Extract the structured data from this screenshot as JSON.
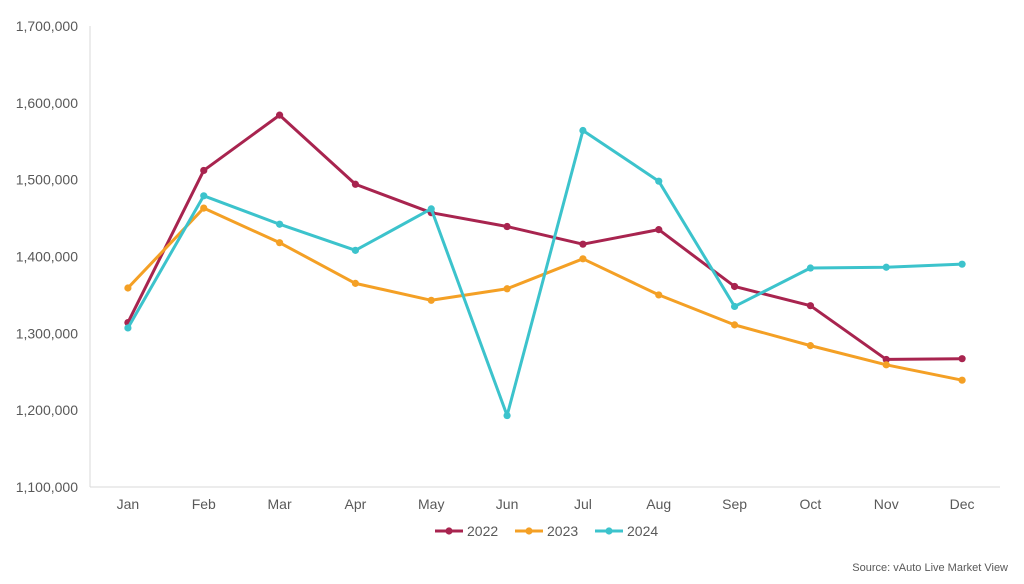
{
  "chart_data": {
    "type": "line",
    "categories": [
      "Jan",
      "Feb",
      "Mar",
      "Apr",
      "May",
      "Jun",
      "Jul",
      "Aug",
      "Sep",
      "Oct",
      "Nov",
      "Dec"
    ],
    "ylim": [
      1100000,
      1700000
    ],
    "yticks": [
      1100000,
      1200000,
      1300000,
      1400000,
      1500000,
      1600000,
      1700000
    ],
    "ytick_labels": [
      "1,100,000",
      "1,200,000",
      "1,300,000",
      "1,400,000",
      "1,500,000",
      "1,600,000",
      "1,700,000"
    ],
    "grid": false,
    "legend_position": "bottom",
    "series": [
      {
        "name": "2022",
        "color": "#A8244F",
        "values": [
          1314000,
          1512000,
          1584000,
          1494000,
          1457000,
          1439000,
          1416000,
          1435000,
          1361000,
          1336000,
          1266000,
          1267000
        ]
      },
      {
        "name": "2023",
        "color": "#F4A025",
        "values": [
          1359000,
          1463000,
          1418000,
          1365000,
          1343000,
          1358000,
          1397000,
          1350000,
          1311000,
          1284000,
          1259000,
          1239000
        ]
      },
      {
        "name": "2024",
        "color": "#3CC3CC",
        "values": [
          1307000,
          1479000,
          1442000,
          1408000,
          1462000,
          1193000,
          1564000,
          1498000,
          1335000,
          1385000,
          1386000,
          1390000
        ]
      }
    ]
  },
  "source_text": "Source: vAuto Live Market View"
}
